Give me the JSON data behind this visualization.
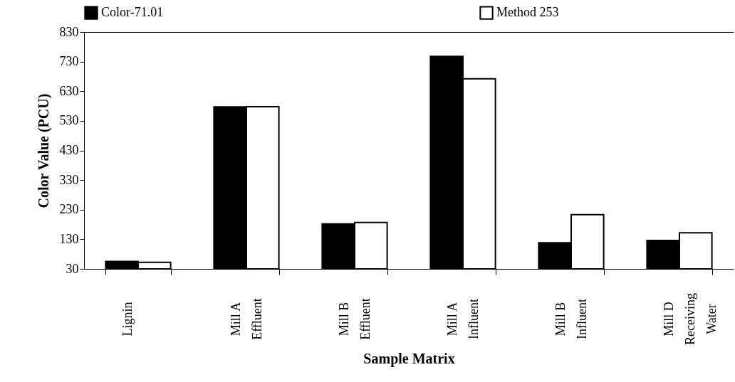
{
  "chart_data": {
    "type": "bar",
    "xlabel": "Sample Matrix",
    "ylabel": "Color Value (PCU)",
    "categories": [
      "Lignin",
      "Mill A\nEffluent",
      "Mill B\nEffluent",
      "Mill A\nInfluent",
      "Mill B\nInfluent",
      "Mill D\nReceiving\nWater"
    ],
    "series": [
      {
        "name": "Color-71.01",
        "color": "#000000",
        "values": [
          55,
          577,
          182,
          748,
          118,
          126
        ]
      },
      {
        "name": "Method 253",
        "color": "#ffffff",
        "values": [
          52,
          578,
          187,
          672,
          213,
          152
        ]
      }
    ],
    "ylim": [
      30,
      830
    ],
    "yticks": [
      30,
      130,
      230,
      330,
      430,
      530,
      630,
      730,
      830
    ],
    "grid": false,
    "legend": "top"
  }
}
